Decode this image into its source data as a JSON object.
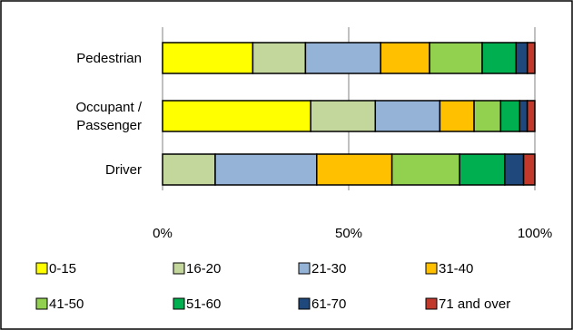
{
  "chart_data": {
    "type": "bar",
    "orientation": "horizontal",
    "stacked": "percent",
    "categories": [
      "Pedestrian",
      "Occupant / Passenger",
      "Driver"
    ],
    "category_lines": [
      [
        "Pedestrian"
      ],
      [
        "Occupant /",
        "Passenger"
      ],
      [
        "Driver"
      ]
    ],
    "series": [
      {
        "name": "0-15",
        "color": "#FFFF00",
        "values": [
          24,
          39,
          0
        ]
      },
      {
        "name": "16-20",
        "color": "#C3D69B",
        "values": [
          14,
          17,
          14
        ]
      },
      {
        "name": "21-30",
        "color": "#95B3D7",
        "values": [
          20,
          17,
          27
        ]
      },
      {
        "name": "31-40",
        "color": "#FFC000",
        "values": [
          13,
          9,
          20
        ]
      },
      {
        "name": "41-50",
        "color": "#92D050",
        "values": [
          14,
          7,
          18
        ]
      },
      {
        "name": "51-60",
        "color": "#00B050",
        "values": [
          9,
          5,
          12
        ]
      },
      {
        "name": "61-70",
        "color": "#1F497D",
        "values": [
          3,
          2,
          5
        ]
      },
      {
        "name": "71 and over",
        "color": "#C0392B",
        "values": [
          2,
          2,
          3
        ]
      }
    ],
    "xlim": [
      0,
      100
    ],
    "x_ticks": [
      "0%",
      "50%",
      "100%"
    ],
    "grid": "vertical",
    "legend_position": "bottom",
    "title": "",
    "xlabel": "",
    "ylabel": ""
  }
}
